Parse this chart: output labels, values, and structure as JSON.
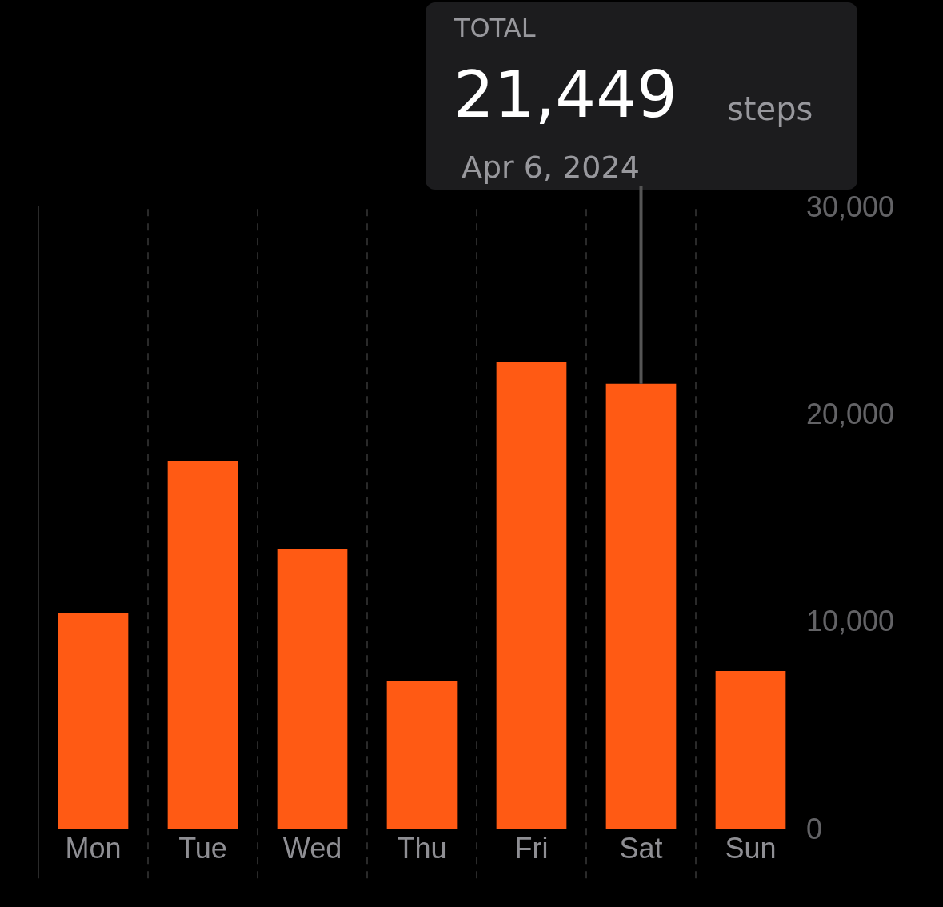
{
  "chart_data": {
    "type": "bar",
    "categories": [
      "Mon",
      "Tue",
      "Wed",
      "Thu",
      "Fri",
      "Sat",
      "Sun"
    ],
    "values": [
      10400,
      17700,
      13500,
      7100,
      22500,
      21449,
      7600
    ],
    "color": "#ff5a14",
    "ylim": [
      0,
      30000
    ],
    "yticks": [
      0,
      {
        "value": 10000,
        "label": "10,000"
      },
      {
        "value": 20000,
        "label": "20,000"
      },
      {
        "value": 30000,
        "label": "30,000"
      }
    ],
    "grid": true,
    "annotations": [
      "TOTAL",
      "21,449",
      "steps",
      {
        "text": "Apr 6, 2024",
        "x": "Sat",
        "y": 21449
      }
    ]
  }
}
